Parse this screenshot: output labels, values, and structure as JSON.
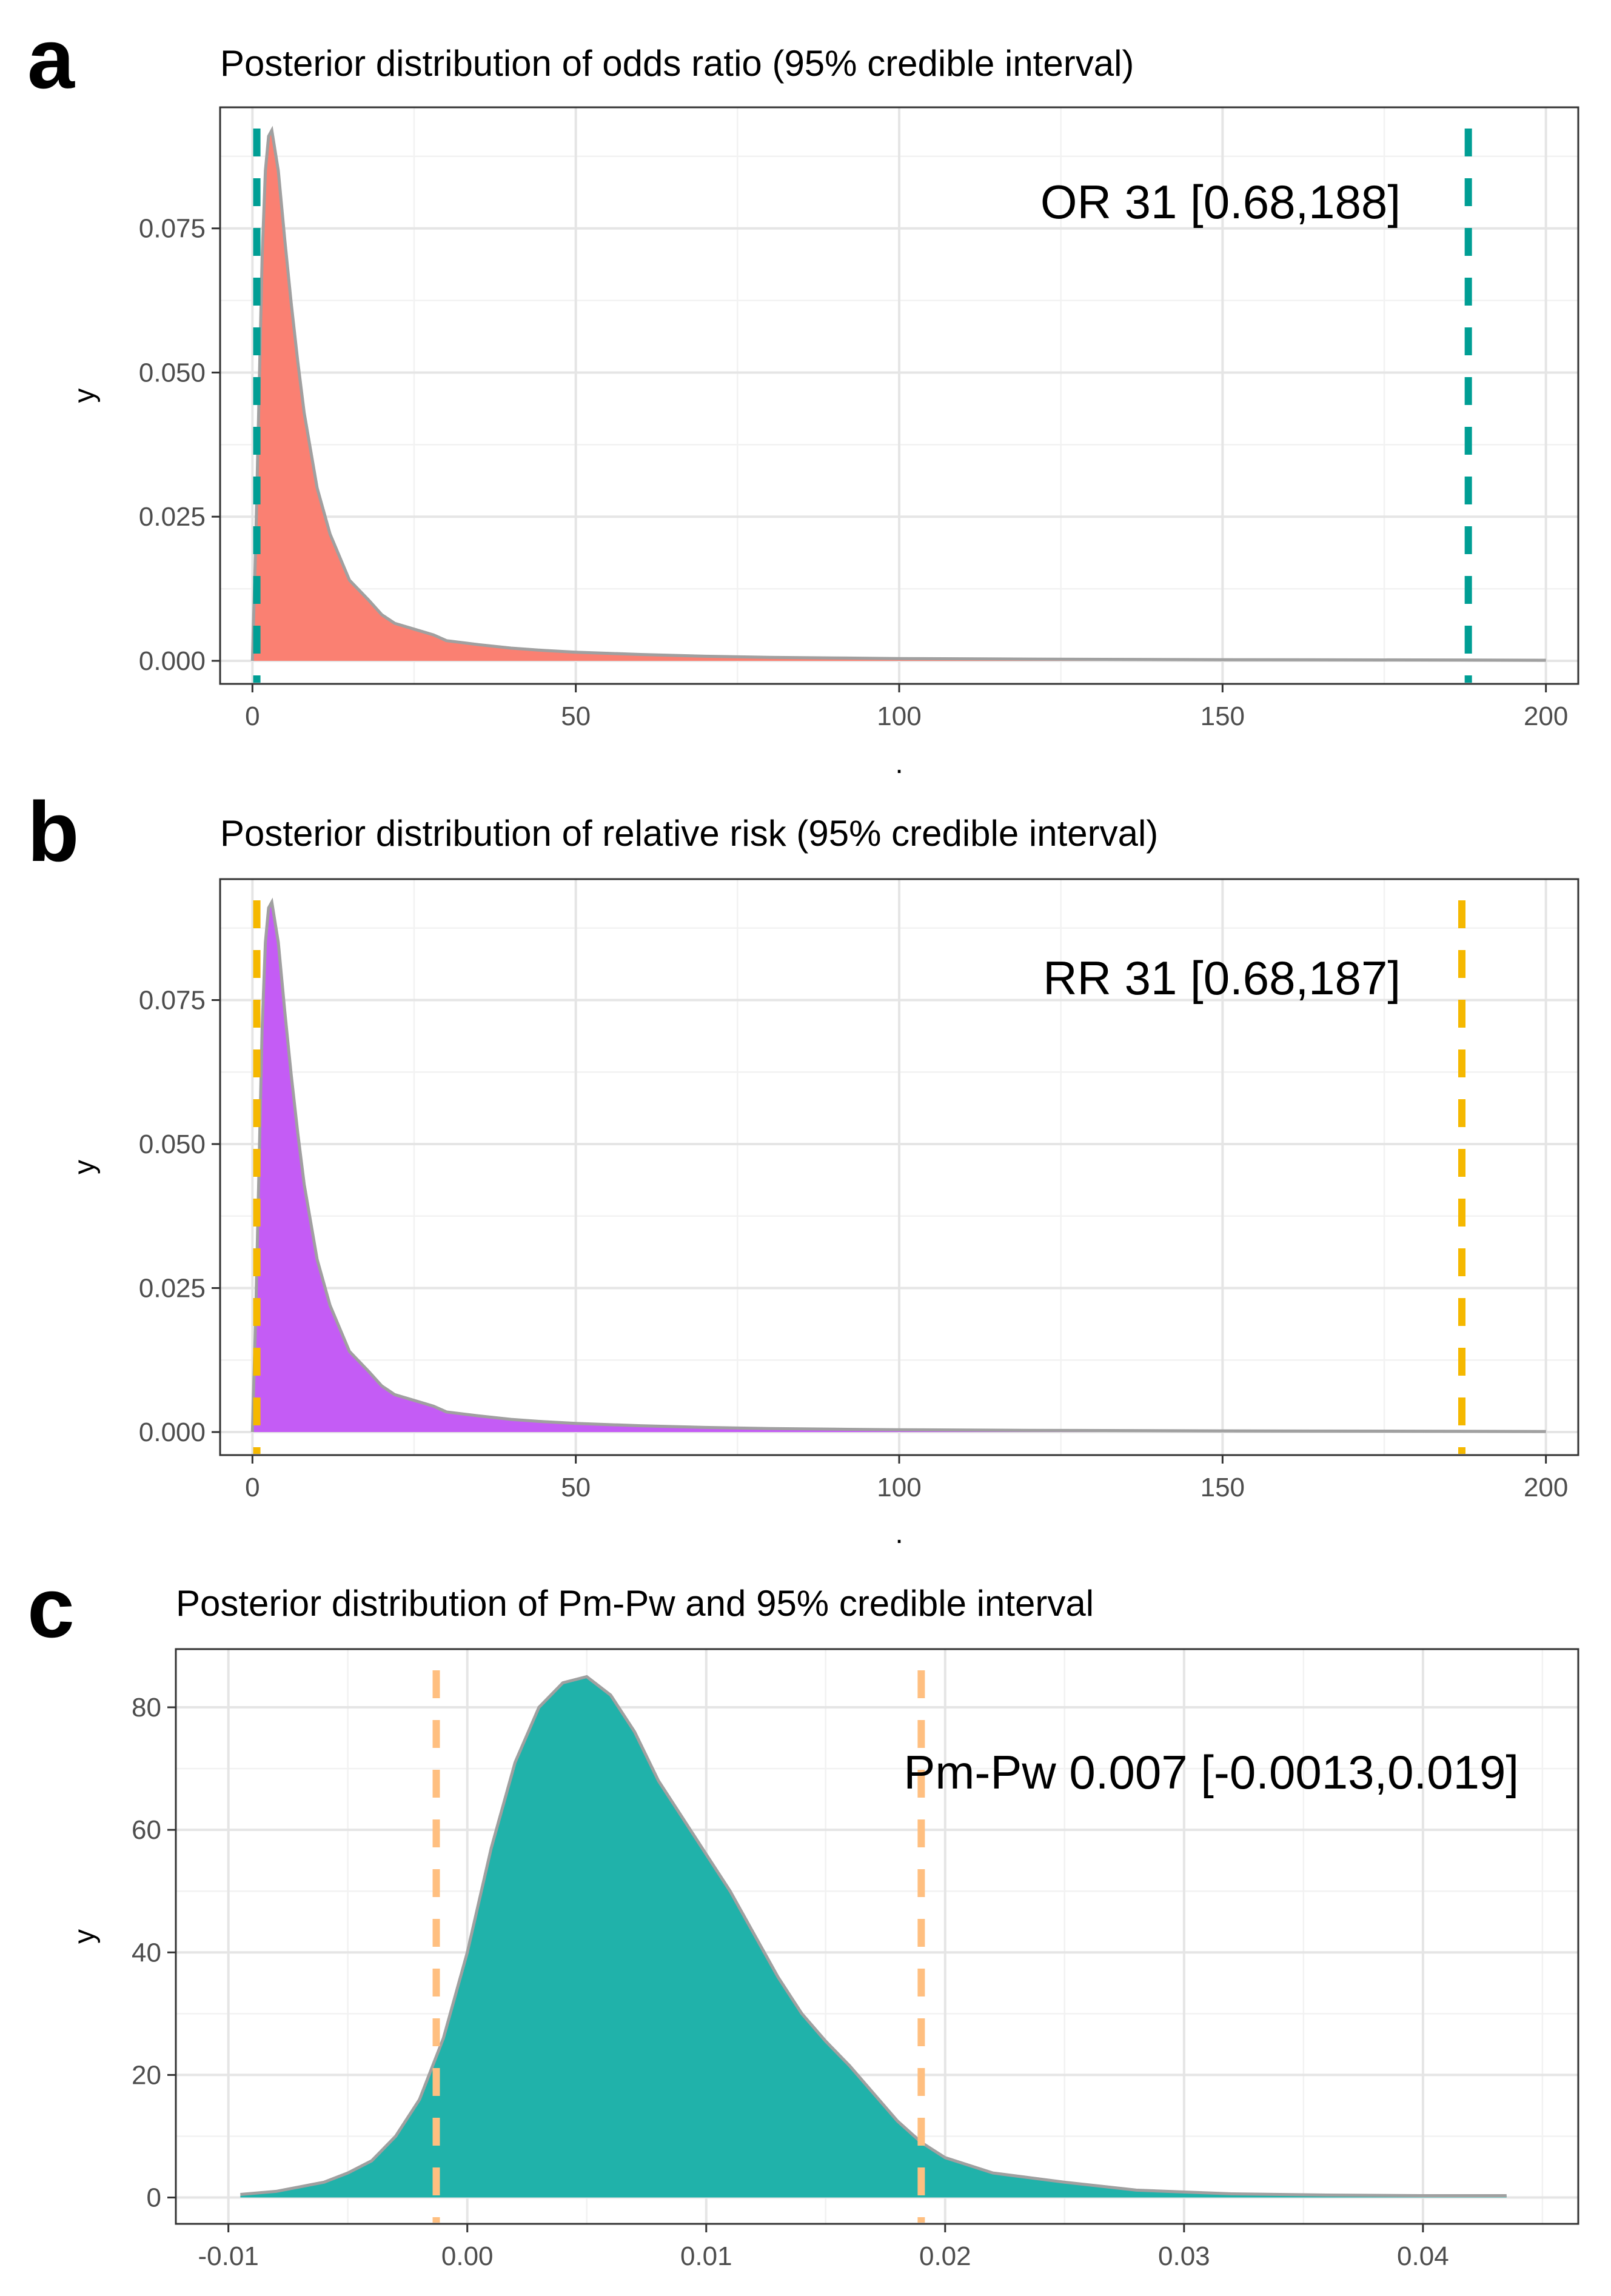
{
  "panel_letters": [
    "a",
    "b",
    "c"
  ],
  "chart_data": [
    {
      "type": "area",
      "panel": "a",
      "title": "Posterior distribution of odds ratio (95% credible interval)",
      "xlabel": ".",
      "ylabel": "y",
      "xlim": [
        -5,
        205
      ],
      "ylim": [
        -0.004,
        0.096
      ],
      "x_ticks": [
        0,
        50,
        100,
        150,
        200
      ],
      "x_tick_labels": [
        "0",
        "50",
        "100",
        "150",
        "200"
      ],
      "y_ticks": [
        0,
        0.025,
        0.05,
        0.075
      ],
      "y_tick_labels": [
        "0.000",
        "0.025",
        "0.050",
        "0.075"
      ],
      "fill_color": "#fa8072",
      "ci_line_color": "#009e94",
      "ci_lower": 0.68,
      "ci_upper": 188,
      "annotation": "OR 31 [0.68,188]",
      "density": {
        "x": [
          0,
          0.5,
          1,
          1.5,
          2,
          2.5,
          3,
          4,
          5,
          6,
          7,
          8,
          10,
          12,
          15,
          18,
          20,
          22,
          25,
          28,
          30,
          35,
          40,
          45,
          50,
          55,
          60,
          70,
          80,
          90,
          100,
          120,
          150,
          180,
          200
        ],
        "y": [
          0,
          0.02,
          0.045,
          0.07,
          0.085,
          0.091,
          0.092,
          0.085,
          0.073,
          0.062,
          0.052,
          0.043,
          0.03,
          0.022,
          0.014,
          0.0105,
          0.008,
          0.0065,
          0.0055,
          0.0045,
          0.0035,
          0.0028,
          0.0022,
          0.0018,
          0.0015,
          0.0013,
          0.0011,
          0.0008,
          0.0006,
          0.0005,
          0.0004,
          0.0003,
          0.0002,
          0.00015,
          0.0001
        ]
      }
    },
    {
      "type": "area",
      "panel": "b",
      "title": "Posterior distribution of relative risk (95% credible interval)",
      "xlabel": ".",
      "ylabel": "y",
      "xlim": [
        -5,
        205
      ],
      "ylim": [
        -0.004,
        0.096
      ],
      "x_ticks": [
        0,
        50,
        100,
        150,
        200
      ],
      "x_tick_labels": [
        "0",
        "50",
        "100",
        "150",
        "200"
      ],
      "y_ticks": [
        0,
        0.025,
        0.05,
        0.075
      ],
      "y_tick_labels": [
        "0.000",
        "0.025",
        "0.050",
        "0.075"
      ],
      "fill_color": "#c45cf5",
      "ci_line_color": "#f5b800",
      "ci_lower": 0.68,
      "ci_upper": 187,
      "annotation": "RR 31 [0.68,187]",
      "density": {
        "x": [
          0,
          0.5,
          1,
          1.5,
          2,
          2.5,
          3,
          4,
          5,
          6,
          7,
          8,
          10,
          12,
          15,
          18,
          20,
          22,
          25,
          28,
          30,
          35,
          40,
          45,
          50,
          55,
          60,
          70,
          80,
          90,
          100,
          120,
          150,
          180,
          200
        ],
        "y": [
          0,
          0.02,
          0.045,
          0.07,
          0.085,
          0.091,
          0.092,
          0.085,
          0.073,
          0.062,
          0.052,
          0.043,
          0.03,
          0.022,
          0.014,
          0.0105,
          0.008,
          0.0065,
          0.0055,
          0.0045,
          0.0035,
          0.0028,
          0.0022,
          0.0018,
          0.0015,
          0.0013,
          0.0011,
          0.0008,
          0.0006,
          0.0005,
          0.0004,
          0.0003,
          0.0002,
          0.00015,
          0.0001
        ]
      }
    },
    {
      "type": "area",
      "panel": "c",
      "title": "Posterior distribution of Pm-Pw and 95% credible interval",
      "xlabel": "",
      "ylabel": "y",
      "xlim": [
        -0.0122,
        0.0465
      ],
      "ylim": [
        -4.3,
        89.5
      ],
      "x_ticks": [
        -0.01,
        0,
        0.01,
        0.02,
        0.03,
        0.04
      ],
      "x_tick_labels": [
        "-0.01",
        "0.00",
        "0.01",
        "0.02",
        "0.03",
        "0.04"
      ],
      "y_ticks": [
        0,
        20,
        40,
        60,
        80
      ],
      "y_tick_labels": [
        "0",
        "20",
        "40",
        "60",
        "80"
      ],
      "fill_color": "#20b2aa",
      "ci_line_color": "#ffbf80",
      "ci_lower": -0.0013,
      "ci_upper": 0.019,
      "annotation": "Pm-Pw 0.007 [-0.0013,0.019]",
      "density": {
        "x": [
          -0.0095,
          -0.008,
          -0.006,
          -0.005,
          -0.004,
          -0.003,
          -0.002,
          -0.001,
          0,
          0.001,
          0.002,
          0.003,
          0.004,
          0.005,
          0.006,
          0.007,
          0.008,
          0.009,
          0.01,
          0.011,
          0.012,
          0.013,
          0.014,
          0.015,
          0.016,
          0.017,
          0.018,
          0.019,
          0.02,
          0.022,
          0.025,
          0.028,
          0.032,
          0.036,
          0.04,
          0.0435
        ],
        "y": [
          0.5,
          1,
          2.5,
          4,
          6,
          10,
          16,
          26,
          40,
          57,
          71,
          80,
          84,
          85,
          82,
          76,
          68,
          62,
          56,
          50,
          43,
          36,
          30,
          25.5,
          21.5,
          17,
          12.5,
          9,
          6.5,
          4,
          2.5,
          1.2,
          0.6,
          0.4,
          0.3,
          0.3
        ]
      }
    }
  ]
}
